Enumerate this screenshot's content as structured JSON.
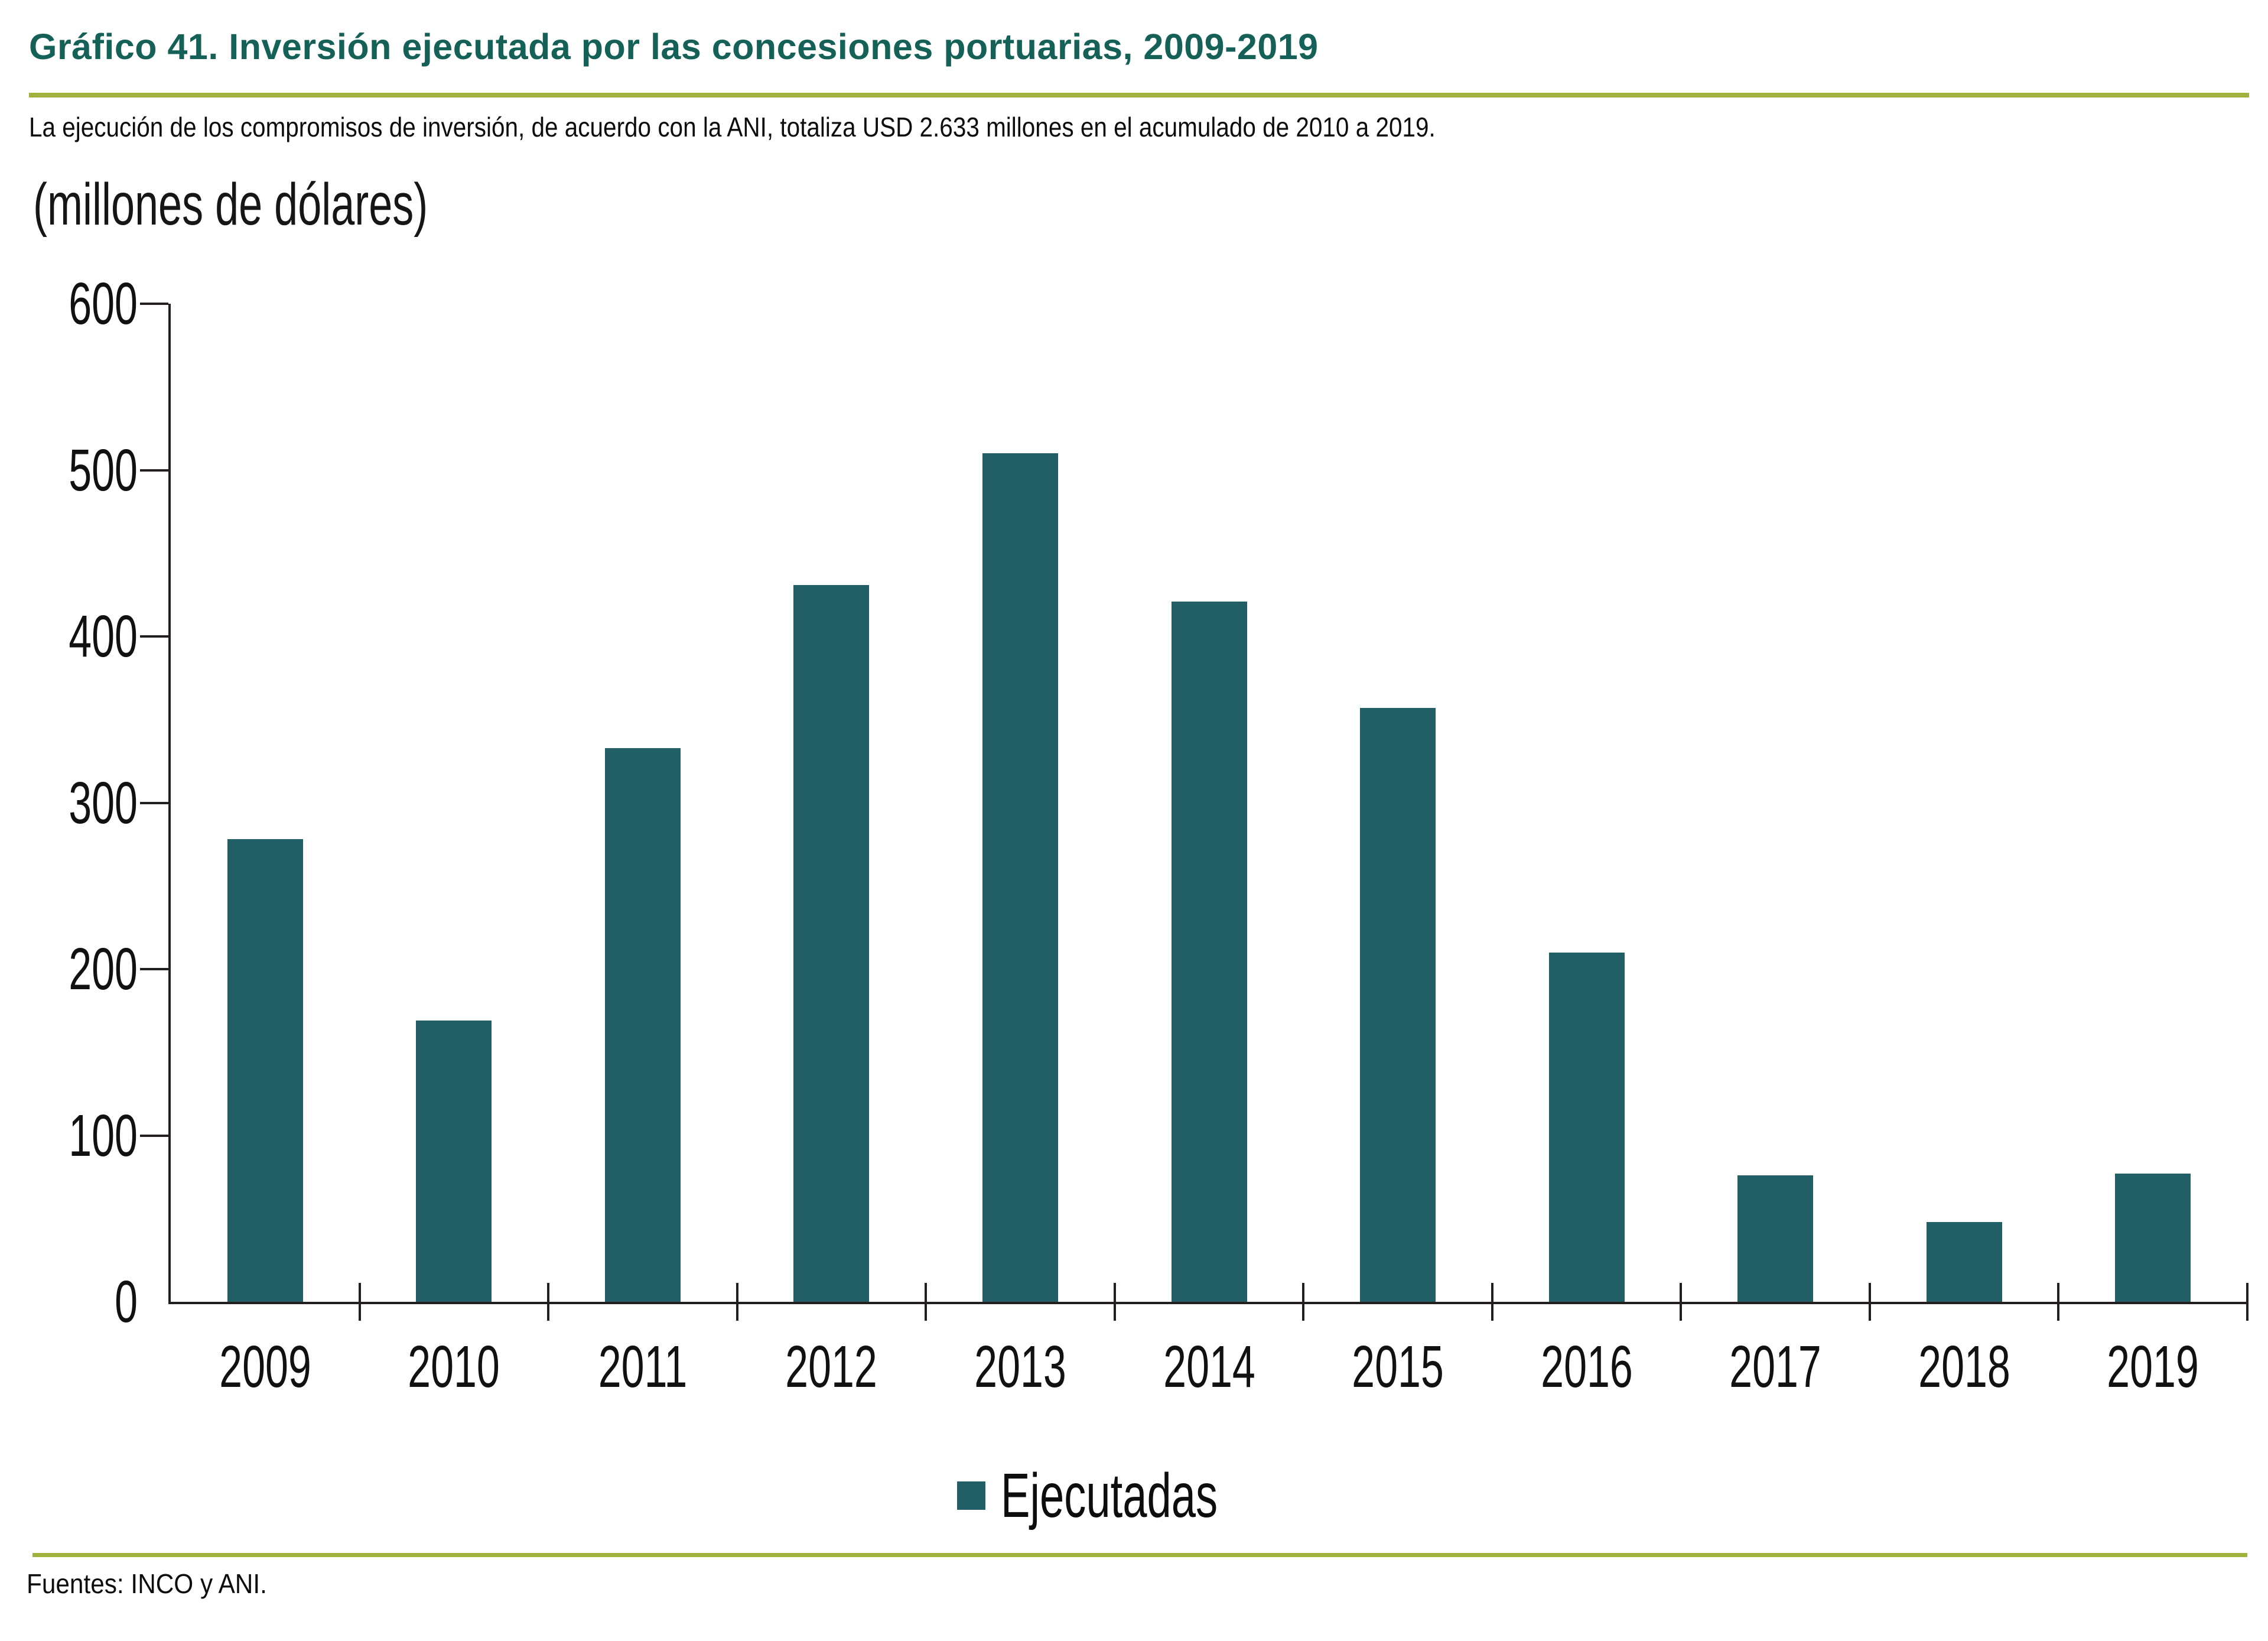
{
  "title": "Gráfico 41. Inversión ejecutada por las concesiones portuarias, 2009-2019",
  "subtitle": "La ejecución de los compromisos de inversión, de acuerdo con la ANI, totaliza USD 2.633 millones en el acumulado de 2010 a 2019.",
  "units_label": "(millones de dólares)",
  "legend": {
    "label": "Ejecutadas"
  },
  "source": "Fuentes: INCO y ANI.",
  "colors": {
    "bar": "#215E66",
    "title_text": "#156158",
    "divider_rule": "#A2B13B",
    "axis": "#231F20"
  },
  "chart_data": {
    "type": "bar",
    "title": "Gráfico 41. Inversión ejecutada por las concesiones portuarias, 2009-2019",
    "categories": [
      "2009",
      "2010",
      "2011",
      "2012",
      "2013",
      "2014",
      "2015",
      "2016",
      "2017",
      "2018",
      "2019"
    ],
    "series": [
      {
        "name": "Ejecutadas",
        "color": "#215E66",
        "values": [
          278,
          169,
          333,
          431,
          510,
          421,
          357,
          210,
          76,
          48,
          77
        ]
      }
    ],
    "xlabel": "",
    "ylabel": "(millones de dólares)",
    "ylim": [
      0,
      600
    ],
    "ytick_step": 100,
    "grid": false,
    "legend_position": "bottom-center"
  }
}
